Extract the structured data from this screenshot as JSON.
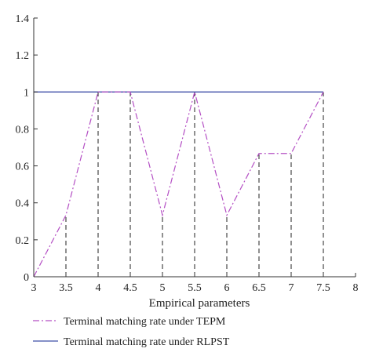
{
  "chart_data": {
    "type": "line",
    "xlabel": "Empirical parameters",
    "ylabel": "",
    "xlim": [
      3,
      8
    ],
    "ylim": [
      0,
      1.4
    ],
    "x_ticks": [
      "3",
      "3.5",
      "4",
      "4.5",
      "5",
      "5.5",
      "6",
      "6.5",
      "7",
      "7.5",
      "8"
    ],
    "y_ticks": [
      "0",
      "0.2",
      "0.4",
      "0.6",
      "0.8",
      "1",
      "1.2",
      "1.4"
    ],
    "grid": false,
    "legend_placement": "bottom",
    "series": [
      {
        "name": "Terminal matching rate under TEPM",
        "color": "#b44fc4",
        "style": "dash-dot",
        "x": [
          3,
          3.5,
          4,
          4.5,
          5,
          5.5,
          6,
          6.5,
          7,
          7.5
        ],
        "y": [
          0,
          0.333,
          1,
          1,
          0.333,
          1,
          0.333,
          0.667,
          0.667,
          1
        ]
      },
      {
        "name": "Terminal matching rate under RLPST",
        "color": "#3f4fa8",
        "style": "solid",
        "x": [
          3,
          3.5,
          4,
          4.5,
          5,
          5.5,
          6,
          6.5,
          7,
          7.5
        ],
        "y": [
          1,
          1,
          1,
          1,
          1,
          1,
          1,
          1,
          1,
          1
        ]
      }
    ],
    "annotations": {
      "vertical_drop_lines_at_x": [
        3.5,
        4,
        4.5,
        5,
        5.5,
        6,
        6.5,
        7,
        7.5
      ],
      "drop_line_style": "black dashed"
    }
  }
}
